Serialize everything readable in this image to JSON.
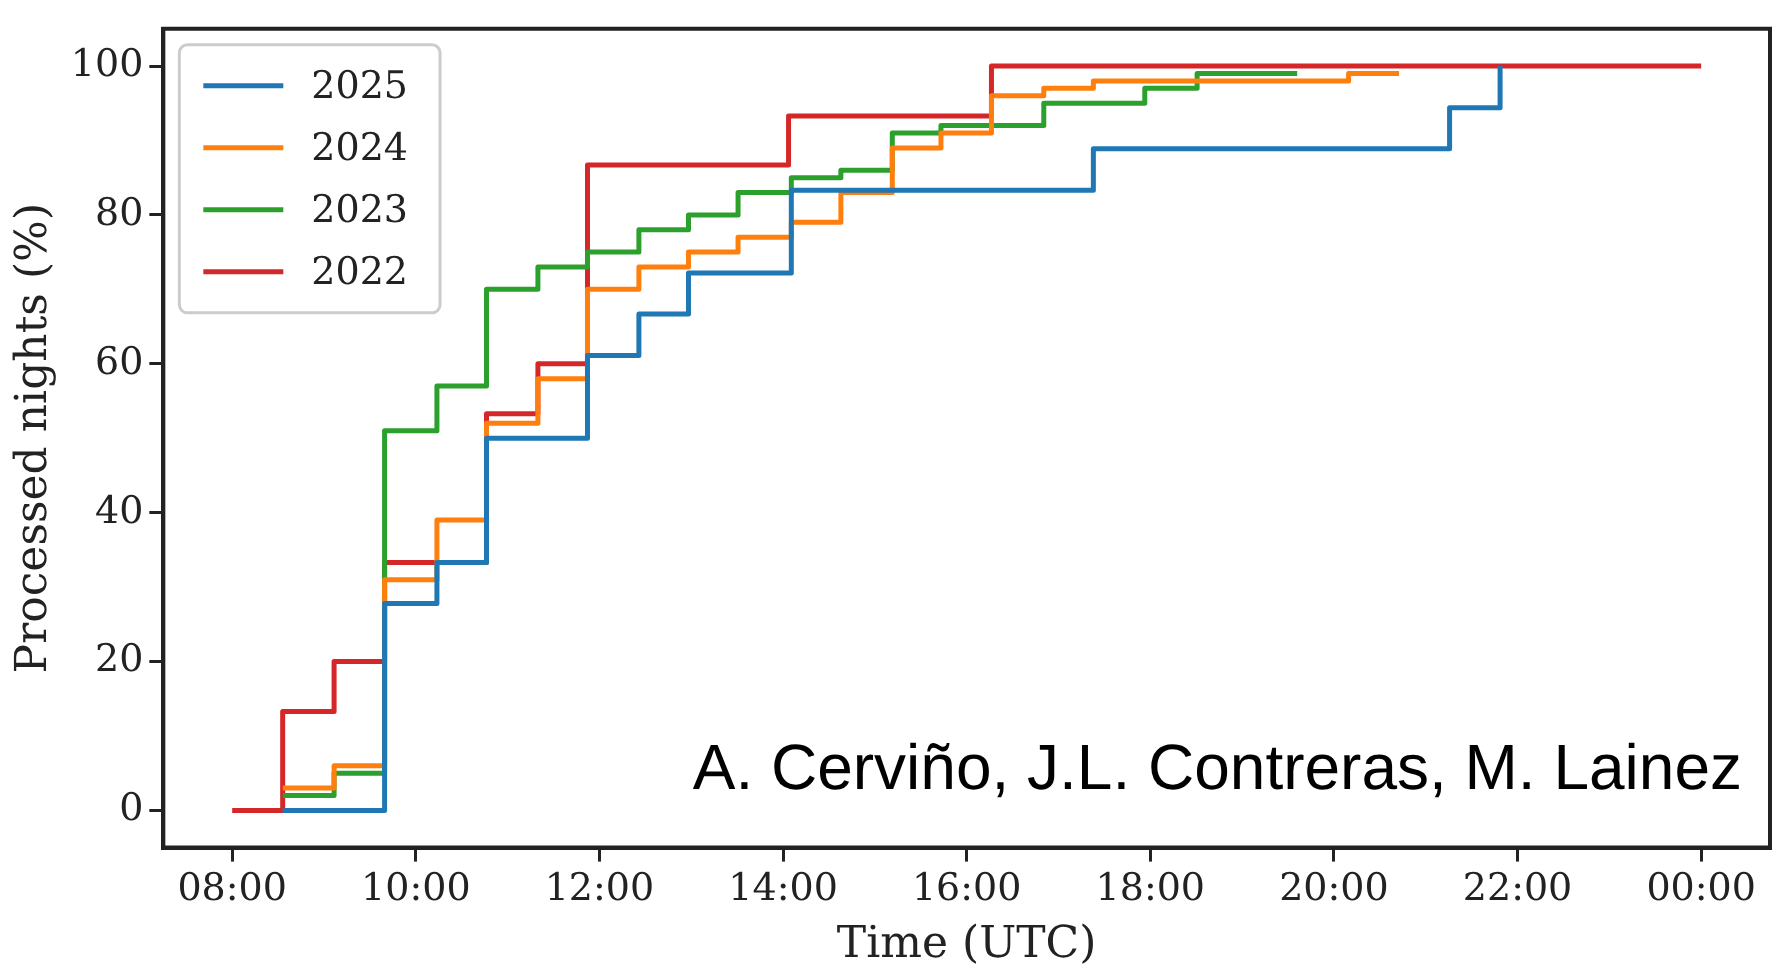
{
  "chart_data": {
    "type": "step",
    "xlabel": "Time (UTC)",
    "ylabel": "Processed nights (%)",
    "xlim": [
      7.25,
      24.75
    ],
    "ylim": [
      -5,
      105
    ],
    "xticks": [
      {
        "value": 8,
        "label": "08:00"
      },
      {
        "value": 10,
        "label": "10:00"
      },
      {
        "value": 12,
        "label": "12:00"
      },
      {
        "value": 14,
        "label": "14:00"
      },
      {
        "value": 16,
        "label": "16:00"
      },
      {
        "value": 18,
        "label": "18:00"
      },
      {
        "value": 20,
        "label": "20:00"
      },
      {
        "value": 22,
        "label": "22:00"
      },
      {
        "value": 24,
        "label": "00:00"
      }
    ],
    "yticks": [
      0,
      20,
      40,
      60,
      80,
      100
    ],
    "grid": false,
    "legend": "top left",
    "line_style": "solid",
    "marker": "none",
    "annotations": [
      "A. Cerviño, J.L. Contreras, M. Lainez"
    ],
    "series": [
      {
        "name": "2025",
        "color": "#1f77b4",
        "x": [
          8.55,
          9.66,
          10.23,
          10.77,
          11.87,
          12.43,
          12.97,
          14.09,
          17.38,
          21.26,
          21.81
        ],
        "values": [
          0,
          27.8,
          33.3,
          50,
          61.1,
          66.7,
          72.2,
          83.3,
          88.9,
          94.4,
          100
        ]
      },
      {
        "name": "2024",
        "color": "#ff7f0e",
        "x": [
          8.55,
          9.11,
          9.66,
          10.23,
          10.77,
          11.33,
          11.87,
          12.43,
          12.97,
          13.51,
          14.09,
          14.63,
          15.19,
          15.72,
          16.27,
          16.84,
          17.38,
          20.16,
          20.71
        ],
        "values": [
          3,
          6,
          31,
          39,
          52,
          58,
          70,
          73,
          75,
          77,
          79,
          83,
          89,
          91,
          96,
          97,
          98,
          99,
          99
        ]
      },
      {
        "name": "2023",
        "color": "#2ca02c",
        "x": [
          8.55,
          9.11,
          9.66,
          10.23,
          10.77,
          11.33,
          11.87,
          12.43,
          12.97,
          13.51,
          14.09,
          14.63,
          15.19,
          15.72,
          16.84,
          17.94,
          18.51,
          19.6
        ],
        "values": [
          2,
          5,
          51,
          57,
          70,
          73,
          75,
          78,
          80,
          83,
          85,
          86,
          91,
          92,
          95,
          97,
          99,
          99
        ]
      },
      {
        "name": "2022",
        "color": "#d62728",
        "x": [
          8.0,
          8.55,
          9.11,
          9.66,
          10.77,
          11.33,
          11.87,
          14.06,
          16.27,
          24.0
        ],
        "values": [
          0,
          13.3,
          20,
          33.3,
          53.3,
          60,
          86.7,
          93.3,
          100,
          100
        ]
      }
    ]
  }
}
